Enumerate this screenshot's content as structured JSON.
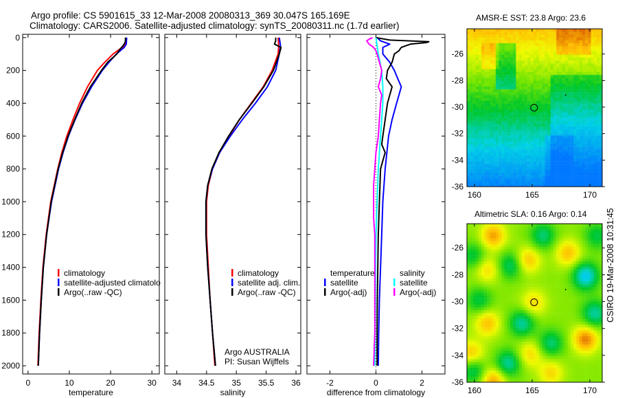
{
  "header": {
    "line1": "Argo profile: CS 5901615_33 12-Mar-2008 20080313_369 30.047S 165.169E",
    "line2": "Climatology: CARS2006. Satellite-adjusted climatology: synTS_20080311.nc (1.7d earlier)"
  },
  "footer_stamp": "CSIRO 19-Mar-2008 10:31:45",
  "colors": {
    "climatology": "#ff0000",
    "satellite": "#0000ff",
    "argo": "#000000",
    "sal_satellite": "#00ffff",
    "sal_argo": "#ff00ff"
  },
  "chart_data": [
    {
      "type": "line",
      "id": "temp",
      "xlabel": "temperature",
      "ylabel": "depth",
      "xlim": [
        -1.3,
        31.8
      ],
      "ylim": [
        2050,
        -20
      ],
      "xticks": [
        0,
        10,
        20,
        30
      ],
      "yticks": [
        0,
        200,
        400,
        600,
        800,
        1000,
        1200,
        1400,
        1600,
        1800,
        2000
      ],
      "legend": {
        "placement": "center-left",
        "entries": [
          "climatology",
          "satellite-adjusted climatolo",
          "Argo(..raw -QC)"
        ]
      },
      "series": [
        {
          "name": "climatology",
          "color": "#ff0000",
          "depth": [
            0,
            40,
            60,
            100,
            150,
            200,
            300,
            400,
            500,
            600,
            700,
            800,
            1000,
            1200,
            1400,
            1600,
            1800,
            2000
          ],
          "values": [
            23.9,
            23.7,
            22.8,
            20.6,
            18.6,
            16.8,
            14.4,
            12.5,
            10.9,
            9.4,
            8.2,
            7.2,
            5.5,
            4.4,
            3.6,
            3.1,
            2.7,
            2.4
          ]
        },
        {
          "name": "satellite-adjusted climatology",
          "color": "#0000ff",
          "depth": [
            0,
            40,
            60,
            100,
            150,
            200,
            300,
            400,
            500,
            600,
            700,
            800,
            1000,
            1200,
            1400,
            1600,
            1800,
            2000
          ],
          "values": [
            23.9,
            23.8,
            23.3,
            21.4,
            19.6,
            18.0,
            15.4,
            13.2,
            11.4,
            9.8,
            8.5,
            7.4,
            5.7,
            4.5,
            3.7,
            3.2,
            2.8,
            2.5
          ]
        },
        {
          "name": "Argo(..raw -QC)",
          "color": "#000000",
          "depth": [
            0,
            20,
            35,
            50,
            70,
            100,
            150,
            200,
            300,
            400,
            500,
            600,
            700,
            800,
            1000,
            1200,
            1400,
            1600,
            1800,
            2000
          ],
          "values": [
            23.6,
            23.6,
            23.4,
            23.0,
            22.3,
            21.5,
            19.3,
            17.8,
            15.1,
            13.0,
            11.3,
            9.7,
            8.4,
            7.3,
            5.6,
            4.5,
            3.7,
            3.2,
            2.8,
            2.5
          ]
        }
      ]
    },
    {
      "type": "line",
      "id": "sal",
      "xlabel": "salinity",
      "xlim": [
        33.8,
        36.08
      ],
      "ylim": [
        2050,
        -20
      ],
      "xticks": [
        34,
        34.5,
        35,
        35.5,
        36
      ],
      "legend": {
        "placement": "center-right",
        "entries": [
          "climatology",
          "satellite adj. clim.",
          "Argo(..raw -QC)"
        ]
      },
      "annotation": [
        "Argo AUSTRALIA",
        "PI: Susan Wijffels"
      ],
      "series": [
        {
          "name": "climatology",
          "color": "#ff0000",
          "depth": [
            0,
            50,
            100,
            200,
            300,
            400,
            500,
            600,
            700,
            800,
            900,
            1000,
            1200,
            1400,
            1600,
            1800,
            2000
          ],
          "values": [
            35.7,
            35.71,
            35.7,
            35.6,
            35.45,
            35.25,
            35.05,
            34.88,
            34.72,
            34.6,
            34.53,
            34.5,
            34.5,
            34.53,
            34.56,
            34.6,
            34.64
          ]
        },
        {
          "name": "satellite adj. clim.",
          "color": "#0000ff",
          "depth": [
            0,
            50,
            100,
            200,
            300,
            400,
            500,
            600,
            700,
            800,
            900,
            1000,
            1200,
            1400,
            1600,
            1800,
            2000
          ],
          "values": [
            35.72,
            35.74,
            35.72,
            35.66,
            35.52,
            35.32,
            35.1,
            34.9,
            34.72,
            34.6,
            34.52,
            34.49,
            34.49,
            34.52,
            34.56,
            34.6,
            34.65
          ]
        },
        {
          "name": "Argo(..raw -QC)",
          "color": "#000000",
          "depth": [
            0,
            20,
            40,
            60,
            100,
            150,
            200,
            300,
            400,
            500,
            600,
            700,
            800,
            900,
            1000,
            1200,
            1400,
            1600,
            1800,
            2000
          ],
          "values": [
            35.66,
            35.66,
            35.64,
            35.75,
            35.72,
            35.67,
            35.62,
            35.46,
            35.26,
            35.05,
            34.87,
            34.71,
            34.59,
            34.52,
            34.49,
            34.49,
            34.52,
            34.56,
            34.6,
            34.65
          ]
        }
      ]
    },
    {
      "type": "line",
      "id": "diff",
      "xlabel": "difference from climatology",
      "xlim": [
        -3,
        3
      ],
      "ylim": [
        2050,
        -20
      ],
      "xticks": [
        -2,
        0,
        2
      ],
      "zero_line": "dotted",
      "legend": {
        "placement": "center",
        "groups": [
          {
            "title": "temperature",
            "entries": [
              "satellite",
              "Argo(-adj)"
            ]
          },
          {
            "title": "salinity",
            "entries": [
              "satellite",
              "Argo(-adj)"
            ]
          }
        ]
      },
      "series": [
        {
          "name": "temperature satellite",
          "color": "#0000ff",
          "depth": [
            0,
            20,
            40,
            60,
            100,
            150,
            200,
            250,
            300,
            350,
            400,
            500,
            600,
            800,
            1000,
            1200,
            1400,
            1600,
            1800,
            2000
          ],
          "values": [
            0.05,
            0.2,
            0.6,
            0.3,
            0.3,
            0.6,
            0.8,
            0.95,
            1.1,
            1.0,
            0.9,
            0.7,
            0.55,
            0.4,
            0.3,
            0.25,
            0.2,
            0.15,
            0.12,
            0.1
          ]
        },
        {
          "name": "temperature Argo(-adj)",
          "color": "#000000",
          "depth": [
            0,
            15,
            25,
            30,
            40,
            60,
            80,
            100,
            150,
            200,
            250,
            300,
            350,
            400,
            500,
            600,
            650,
            700,
            800,
            1000,
            1200,
            1400,
            1600,
            1800,
            2000
          ],
          "values": [
            0.0,
            0.6,
            2.3,
            2.2,
            1.5,
            1.1,
            1.0,
            0.8,
            0.7,
            0.5,
            0.45,
            0.7,
            0.6,
            0.5,
            0.4,
            0.3,
            0.25,
            0.4,
            0.2,
            0.15,
            0.1,
            0.08,
            0.06,
            0.05,
            0.05
          ]
        },
        {
          "name": "salinity satellite",
          "color": "#00ffff",
          "depth": [
            0,
            50,
            100,
            200,
            300,
            400,
            500,
            600,
            800,
            1000,
            1200,
            1400,
            1600,
            1800,
            2000
          ],
          "values": [
            0.0,
            0.05,
            0.1,
            0.25,
            0.3,
            0.3,
            0.25,
            0.2,
            0.1,
            0.05,
            0.0,
            -0.02,
            -0.03,
            -0.04,
            -0.05
          ]
        },
        {
          "name": "salinity Argo(-adj)",
          "color": "#ff00ff",
          "depth": [
            0,
            10,
            20,
            40,
            60,
            80,
            100,
            150,
            200,
            250,
            300,
            350,
            400,
            500,
            600,
            700,
            800,
            900,
            1000,
            1100,
            1200,
            1400,
            1600,
            1800,
            2000
          ],
          "values": [
            -0.15,
            -0.3,
            -0.4,
            -0.3,
            -0.1,
            0.0,
            0.05,
            0.15,
            0.25,
            0.2,
            0.1,
            0.25,
            0.2,
            0.15,
            0.1,
            0.0,
            -0.05,
            -0.1,
            -0.1,
            -0.1,
            -0.05,
            -0.05,
            -0.05,
            -0.05,
            -0.1
          ]
        }
      ]
    },
    {
      "type": "heatmap",
      "id": "sst_map",
      "title": "AMSR-E SST: 23.8 Argo: 23.6",
      "xlim": [
        159.35,
        171.07
      ],
      "ylim": [
        -36,
        -24.1
      ],
      "xticks": [
        160,
        165,
        170
      ],
      "yticks": [
        -26,
        -28,
        -30,
        -32,
        -34,
        -36
      ],
      "marker": {
        "lon": 165.169,
        "lat": -30.047
      }
    },
    {
      "type": "heatmap",
      "id": "sla_map",
      "title": "Altimetric SLA: 0.16 Argo: 0.14",
      "xlim": [
        159.35,
        171.07
      ],
      "ylim": [
        -36,
        -24.2
      ],
      "xticks": [
        160,
        165,
        170
      ],
      "yticks": [
        -26,
        -28,
        -30,
        -32,
        -34,
        -36
      ],
      "marker": {
        "lon": 165.169,
        "lat": -30.047
      }
    }
  ]
}
